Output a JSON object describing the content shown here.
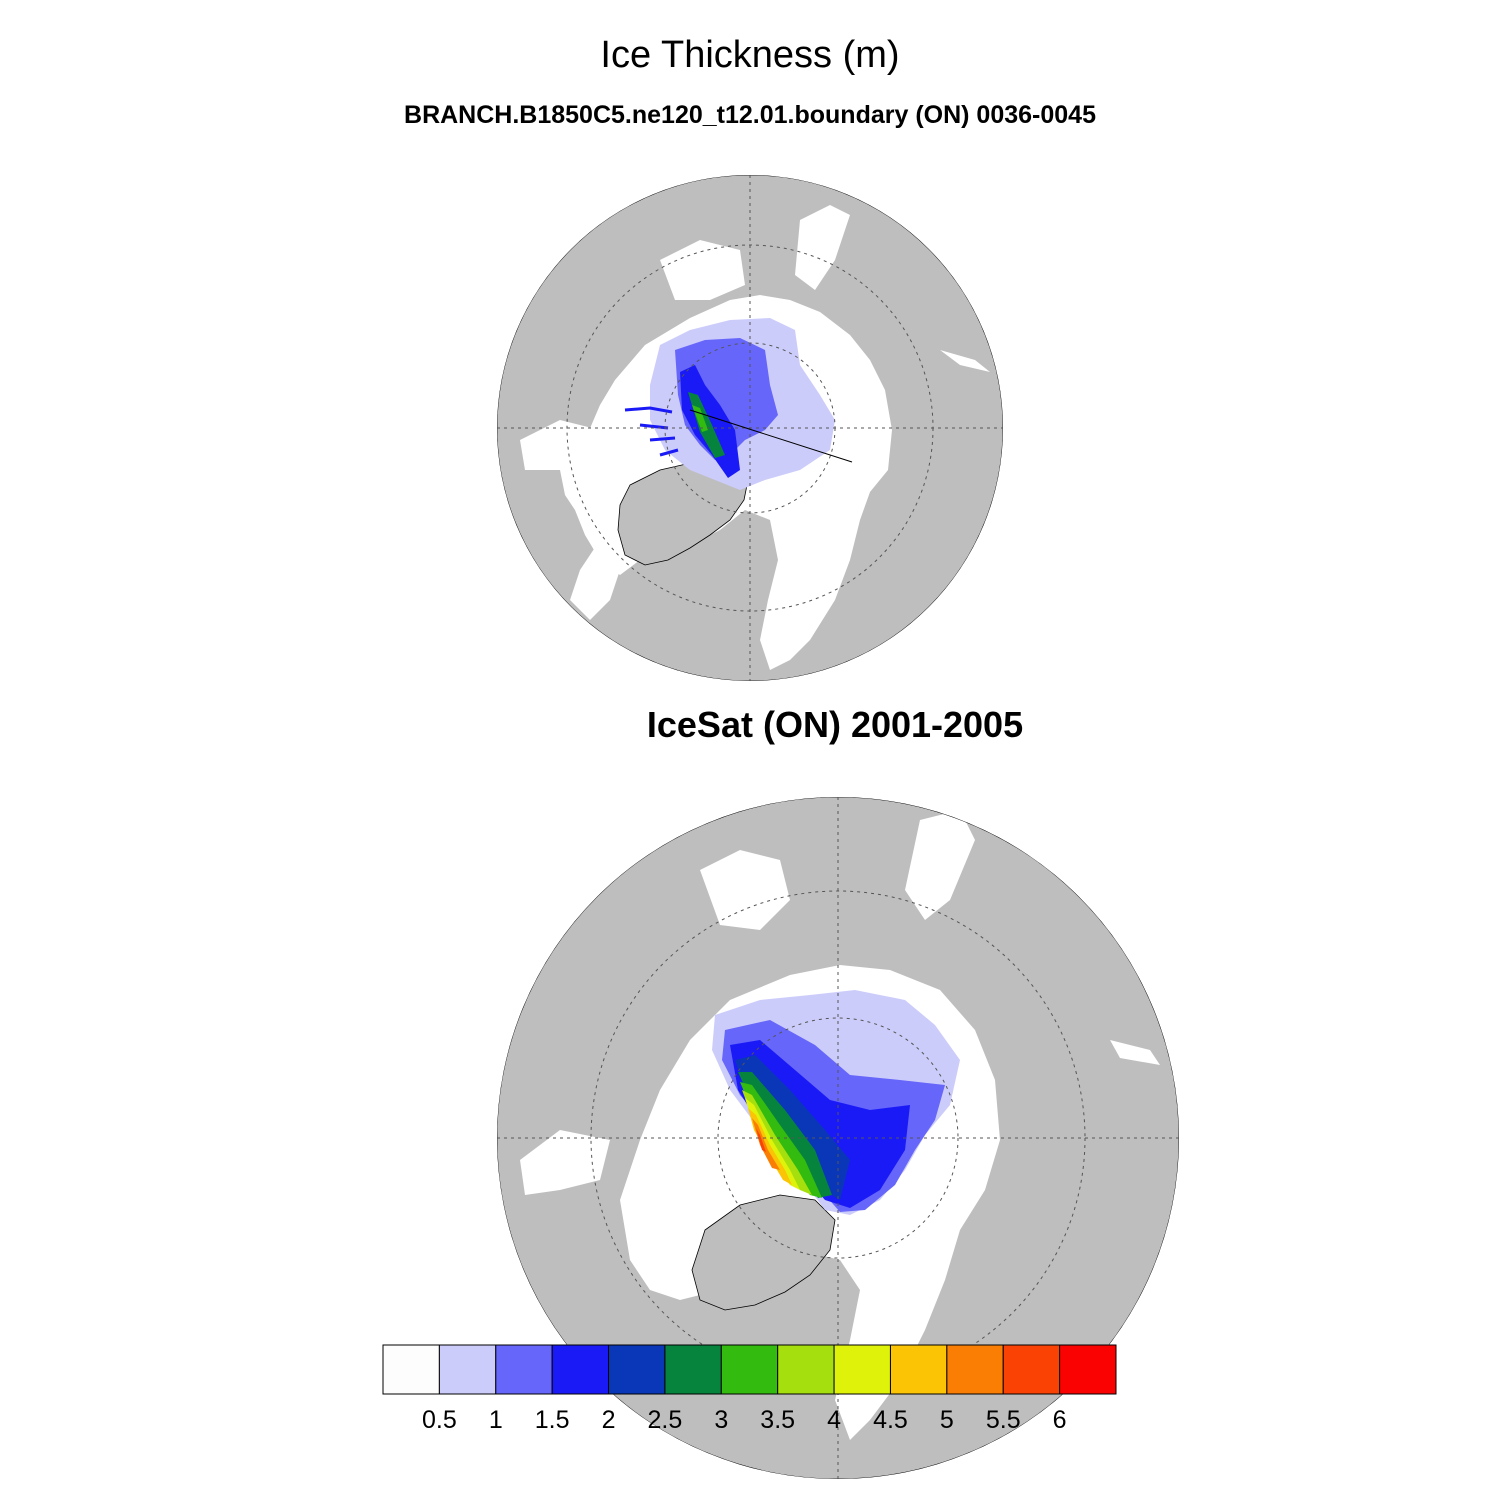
{
  "title": "Ice Thickness (m)",
  "panels": [
    {
      "title": "BRANCH.B1850C5.ne120_t12.01.boundary (ON) 0036-0045",
      "type": "model"
    },
    {
      "title": "IceSat (ON) 2001-2005",
      "type": "observation"
    }
  ],
  "colorbar": {
    "colors": [
      "#fdfdfd",
      "#ccccfb",
      "#6666fa",
      "#1a1af7",
      "#0a37b7",
      "#06843d",
      "#33bb0f",
      "#a5e00e",
      "#dff30a",
      "#fbc405",
      "#fb7e04",
      "#fa4204",
      "#fb0202"
    ],
    "labels": [
      "0.5",
      "1",
      "1.5",
      "2",
      "2.5",
      "3",
      "3.5",
      "4",
      "4.5",
      "5",
      "5.5",
      "6"
    ]
  },
  "colors": {
    "land": "#bebebe",
    "ocean": "#ffffff",
    "outline": "#000000"
  }
}
